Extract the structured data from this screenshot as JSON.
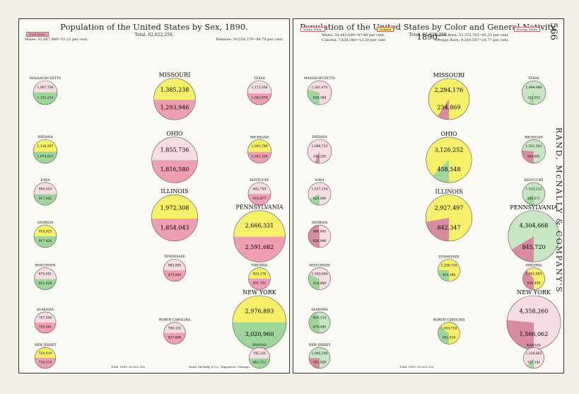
{
  "left_plate": {
    "title": "Population of the United States by Sex, 1890.",
    "total": "Total. 62,622,250.",
    "males": "Males: 32,067,880=51.21 per cent.",
    "females": "Females: 30,554,370=48.79 per cent.",
    "key": "Total Males",
    "footer": "Total, 1890, 62,622,250",
    "publisher_note": "Rand, McNally & Co., Engravers, Chicago"
  },
  "right_plate": {
    "title": "Population of the United States by Color and General Nativity, 1890.",
    "total": "Total. 62,622,250.",
    "white": "White: 54,983,890=87.80 per cent.",
    "colored": "Colored: 7,638,360=12.20 per cent.",
    "native": "Native Born: 53,372,703=85.23 per cent.",
    "foreign": "Foreign Born: 9,249,547=14.77 per cent.",
    "keys": [
      "Native White",
      "Colored",
      "Foreign White"
    ],
    "footer": "Total, 1890, 62,622,250"
  },
  "page_number": "566",
  "publisher": "RAND, McNALLY & COMPANY'S",
  "colors": {
    "male": "#ef9fb2",
    "female": "#9fd79a",
    "female_alt": "#f5ef6a",
    "native_white": "#f6dde4",
    "foreign_white": "#f5ef6a",
    "colored": "#d98ba0"
  },
  "chart_data": [
    {
      "type": "pie",
      "title": "Population of the United States by Sex, 1890.",
      "series": [
        {
          "name": "MASSACHUSETTS",
          "values": [
            1087709,
            1151234
          ]
        },
        {
          "name": "MISSOURI",
          "values": [
            1385238,
            1293946
          ]
        },
        {
          "name": "TEXAS",
          "values": [
            1172566,
            1062670
          ]
        },
        {
          "name": "INDIANA",
          "values": [
            1118347,
            1074057
          ]
        },
        {
          "name": "OHIO",
          "values": [
            1855736,
            1816580
          ]
        },
        {
          "name": "MICHIGAN",
          "values": [
            1091780,
            1002109
          ]
        },
        {
          "name": "IOWA",
          "values": [
            994453,
            917442
          ]
        },
        {
          "name": "ILLINOIS",
          "values": [
            1972308,
            1854043
          ]
        },
        {
          "name": "KENTUCKY",
          "values": [
            942758,
            915877
          ]
        },
        {
          "name": "GEORGIA",
          "values": [
            919925,
            917428
          ]
        },
        {
          "name": "TENNESSEE",
          "values": [
            885695,
            875803
          ]
        },
        {
          "name": "PENNSYLVANIA",
          "values": [
            2666331,
            2591682
          ]
        },
        {
          "name": "WISCONSIN",
          "values": [
            874951,
            811929
          ]
        },
        {
          "name": "VIRGINIA",
          "values": [
            824278,
            831702
          ]
        },
        {
          "name": "ALABAMA",
          "values": [
            757456,
            755561
          ]
        },
        {
          "name": "NEW YORK",
          "values": [
            2976893,
            3020960
          ]
        },
        {
          "name": "NORTH CAROLINA",
          "values": [
            790131,
            827806
          ]
        },
        {
          "name": "NEW JERSEY",
          "values": [
            720819,
            724114
          ]
        },
        {
          "name": "KANSAS",
          "values": [
            745121,
            682112
          ]
        }
      ]
    },
    {
      "type": "pie",
      "title": "Population of the United States by Color and General Nativity, 1890.",
      "series": [
        {
          "name": "MASSACHUSETTS",
          "values": [
            1581870,
            658368
          ]
        },
        {
          "name": "MISSOURI",
          "values": [
            2294176,
            234869
          ]
        },
        {
          "name": "TEXAS",
          "values": [
            1494086,
            152952,
            488171
          ]
        },
        {
          "name": "INDIANA",
          "values": [
            2066733,
            146205
          ]
        },
        {
          "name": "OHIO",
          "values": [
            3126252,
            458548
          ]
        },
        {
          "name": "MICHIGAN",
          "values": [
            1531282,
            543881
          ]
        },
        {
          "name": "IOWA",
          "values": [
            1527154,
            324000
          ]
        },
        {
          "name": "ILLINOIS",
          "values": [
            2927497,
            842347
          ]
        },
        {
          "name": "KENTUCKY",
          "values": [
            1524222,
            268071
          ]
        },
        {
          "name": "GEORGIA",
          "values": [
            906085,
            858996
          ]
        },
        {
          "name": "TENNESSEE",
          "values": [
            1256728,
            434300
          ]
        },
        {
          "name": "PENNSYLVANIA",
          "values": [
            4304668,
            845720
          ]
        },
        {
          "name": "WISCONSIN",
          "values": [
            1162694,
            518899
          ]
        },
        {
          "name": "VIRGINIA",
          "values": [
            1001003,
            635438
          ]
        },
        {
          "name": "ALABAMA",
          "values": [
            819114,
            678489
          ]
        },
        {
          "name": "NEW YORK",
          "values": [
            4358260,
            1566062
          ]
        },
        {
          "name": "NORTH CAROLINA",
          "values": [
            1053720,
            561018
          ]
        },
        {
          "name": "NEW JERSEY",
          "values": [
            1095208,
            351550
          ]
        },
        {
          "name": "KANSAS",
          "values": [
            1229863,
            147141
          ]
        }
      ]
    }
  ]
}
